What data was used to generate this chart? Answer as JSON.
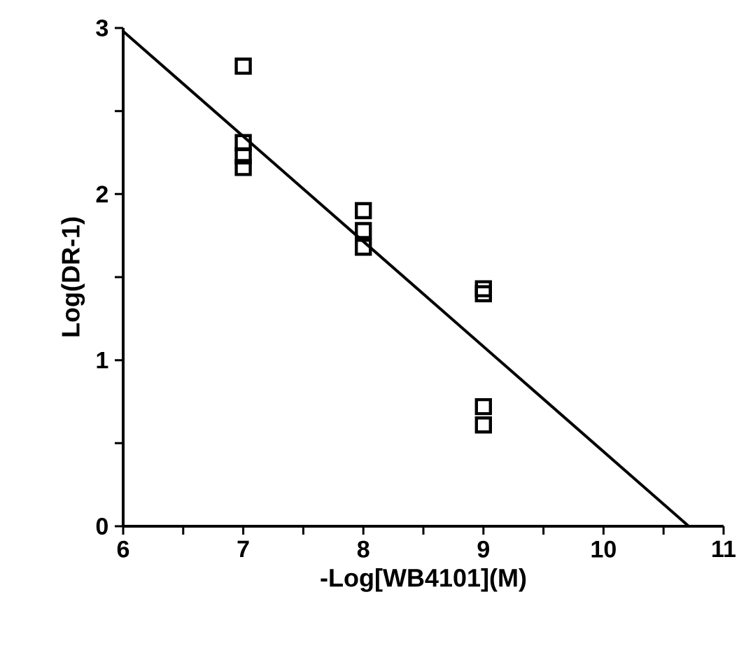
{
  "chart_data": {
    "type": "scatter",
    "xlabel": "-Log[WB4101](M)",
    "ylabel": "Log(DR-1)",
    "xlim": [
      6,
      11
    ],
    "ylim": [
      0,
      3
    ],
    "xticks": [
      6,
      {
        "value": 6.5,
        "label": null
      },
      7,
      {
        "value": 7.5,
        "label": null
      },
      8,
      {
        "value": 8.5,
        "label": null
      },
      9,
      {
        "value": 9.5,
        "label": null
      },
      10,
      {
        "value": 10.5,
        "label": null
      },
      11
    ],
    "yticks": [
      0,
      {
        "value": 0.5,
        "label": null
      },
      1,
      {
        "value": 1.5,
        "label": null
      },
      2,
      {
        "value": 2.5,
        "label": null
      },
      3
    ],
    "grid": false,
    "series": [
      {
        "color": "#000000",
        "marker": "square",
        "x": [
          7,
          7,
          7,
          7,
          8,
          8,
          8,
          9,
          9,
          9,
          9
        ],
        "values": [
          2.77,
          2.31,
          2.23,
          2.16,
          1.9,
          1.78,
          1.68,
          1.43,
          1.4,
          0.72,
          0.61
        ]
      },
      {
        "type": "line",
        "color": "#000000",
        "line_style": "solid",
        "marker": "none",
        "x": [
          6,
          10.71
        ],
        "values": [
          2.98,
          0
        ]
      }
    ]
  }
}
